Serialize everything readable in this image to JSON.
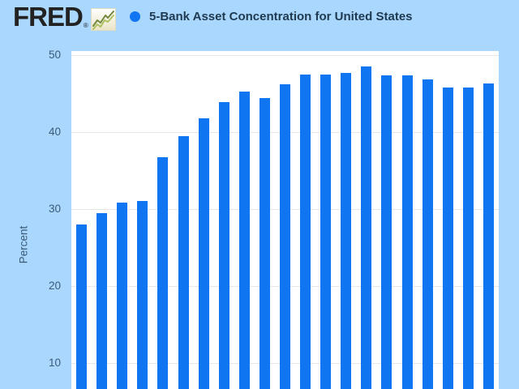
{
  "header": {
    "logo_text": "FRED",
    "logo_registered_mark": "®",
    "legend": {
      "marker_color": "#0f75f0",
      "label": "5-Bank Asset Concentration for United States"
    }
  },
  "chart_data": {
    "type": "bar",
    "title": "5-Bank Asset Concentration for United States",
    "xlabel": "",
    "ylabel": "Percent",
    "y_ticks": [
      10,
      20,
      30,
      40,
      50
    ],
    "y_axis_visible_range": [
      6.6,
      50.5
    ],
    "cropped_at_bottom": true,
    "x_tick_labels_visible": false,
    "grid": true,
    "values": [
      28.0,
      29.4,
      30.8,
      31.0,
      36.7,
      39.4,
      41.8,
      43.9,
      45.2,
      44.4,
      46.2,
      47.4,
      47.4,
      47.7,
      48.5,
      47.3,
      47.3,
      46.8,
      45.8,
      45.8,
      46.3
    ],
    "bar_color": "#0f75f0",
    "plot_background": "#ffffff",
    "gridline_color": "#e7e7e7"
  },
  "colors": {
    "page_background": "#aad7fd",
    "logo_text": "#222222",
    "legend_text": "#1f3a50",
    "axis_text": "#3a5a78",
    "icon_line_dark": "#74883e",
    "icon_line_light": "#adc263"
  }
}
